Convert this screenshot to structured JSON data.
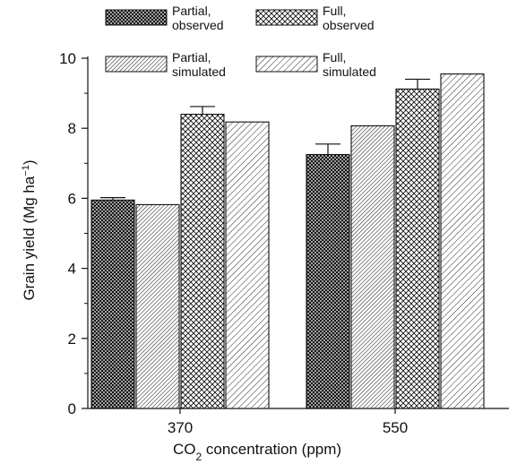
{
  "chart_data": {
    "type": "bar",
    "categories": [
      "370",
      "550"
    ],
    "series": [
      {
        "name": [
          "Partial,",
          "observed"
        ],
        "values": [
          5.95,
          7.25
        ],
        "error": [
          0.07,
          0.3
        ],
        "pattern": "dense-crosshatch"
      },
      {
        "name": [
          "Partial,",
          "simulated"
        ],
        "values": [
          5.82,
          8.07
        ],
        "pattern": "dense-diagonal"
      },
      {
        "name": [
          "Full,",
          "observed"
        ],
        "values": [
          8.4,
          9.12
        ],
        "error": [
          0.22,
          0.28
        ],
        "pattern": "open-crosshatch"
      },
      {
        "name": [
          "Full,",
          "simulated"
        ],
        "values": [
          8.18,
          9.55
        ],
        "pattern": "open-diagonal"
      }
    ],
    "yticks": [
      "0",
      "2",
      "4",
      "6",
      "8",
      "10"
    ],
    "ylim": [
      0,
      10
    ],
    "ylabel": {
      "main": "Grain yield (Mg ha",
      "sup": "−1",
      "close": ")"
    },
    "xlabel": {
      "pre": "CO",
      "sub": "2",
      "post": " concentration (ppm)"
    },
    "legend_position": "top",
    "grid": false
  }
}
